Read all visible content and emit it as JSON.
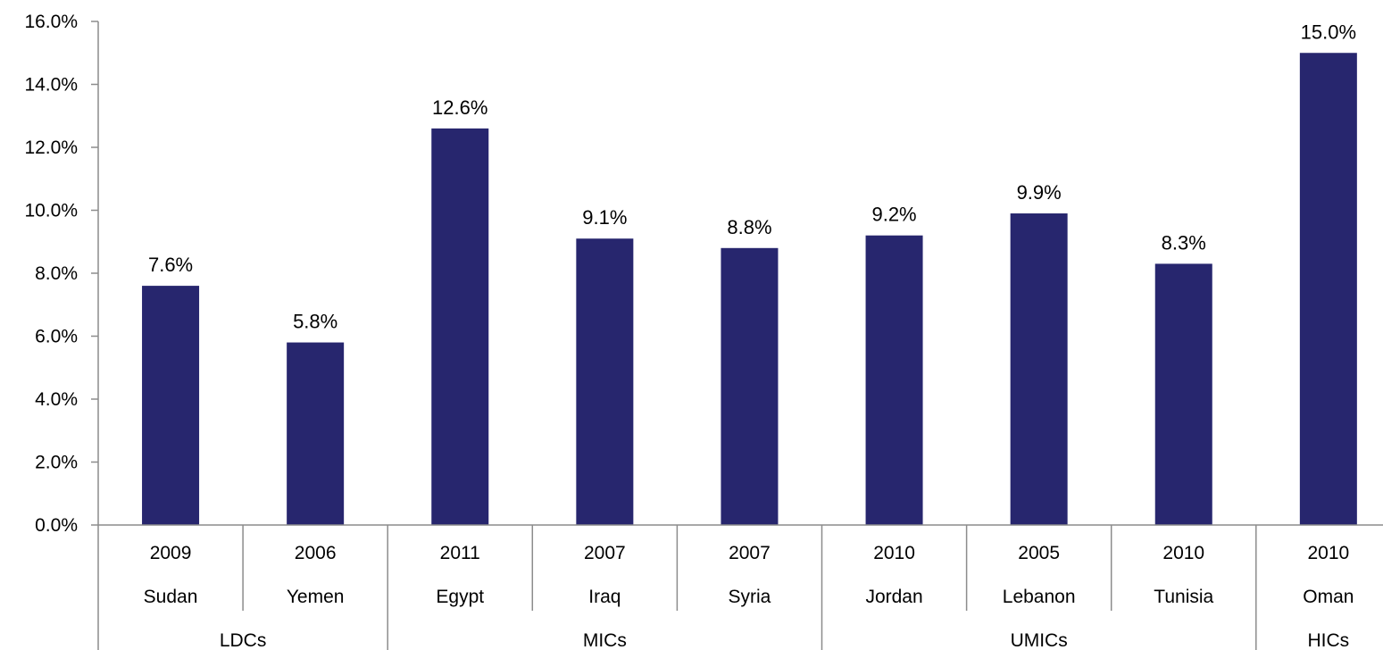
{
  "chart_data": {
    "type": "bar",
    "title": "",
    "xlabel": "",
    "ylabel": "",
    "ylim": [
      0,
      16
    ],
    "yticks": [
      0,
      2,
      4,
      6,
      8,
      10,
      12,
      14,
      16
    ],
    "ytick_labels": [
      "0.0%",
      "2.0%",
      "4.0%",
      "6.0%",
      "8.0%",
      "10.0%",
      "12.0%",
      "14.0%",
      "16.0%"
    ],
    "grid": false,
    "legend": "none",
    "bar_color": "#27266e",
    "categories": [
      {
        "year": "2009",
        "country": "Sudan"
      },
      {
        "year": "2006",
        "country": "Yemen"
      },
      {
        "year": "2011",
        "country": "Egypt"
      },
      {
        "year": "2007",
        "country": "Iraq"
      },
      {
        "year": "2007",
        "country": "Syria"
      },
      {
        "year": "2010",
        "country": "Jordan"
      },
      {
        "year": "2005",
        "country": "Lebanon"
      },
      {
        "year": "2010",
        "country": "Tunisia"
      },
      {
        "year": "2010",
        "country": "Oman"
      }
    ],
    "values": [
      7.6,
      5.8,
      12.6,
      9.1,
      8.8,
      9.2,
      9.9,
      8.3,
      15.0
    ],
    "data_labels": [
      "7.6%",
      "5.8%",
      "12.6%",
      "9.1%",
      "8.8%",
      "9.2%",
      "9.9%",
      "8.3%",
      "15.0%"
    ],
    "groups": [
      {
        "label": "LDCs",
        "count": 2
      },
      {
        "label": "MICs",
        "count": 3
      },
      {
        "label": "UMICs",
        "count": 3
      },
      {
        "label": "HICs",
        "count": 1
      }
    ]
  }
}
